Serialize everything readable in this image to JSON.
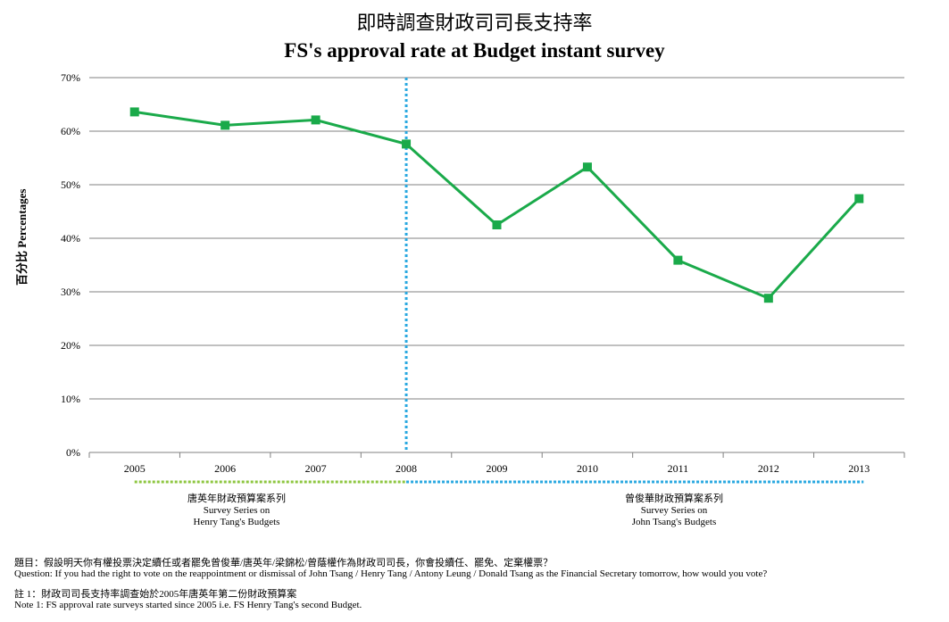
{
  "title_zh": "即時調查財政司司長支持率",
  "title_en": "FS's approval rate at Budget instant survey",
  "ylabel": "百分比 Percentages",
  "series_labels": {
    "henry": {
      "zh": "唐英年財政預算案系列",
      "en1": "Survey Series on",
      "en2": "Henry Tang's Budgets"
    },
    "john": {
      "zh": "曾俊華財政預算案系列",
      "en1": "Survey Series on",
      "en2": "John Tsang's Budgets"
    }
  },
  "notes": {
    "question_zh": "題目：假設明天你有權投票決定續任或者罷免曾俊華/唐英年/梁錦松/曾蔭權作為財政司司長，你會投續任、罷免、定棄權票？",
    "question_en": "Question: If you had the right  to vote on the reappointment or dismissal of John Tsang / Henry Tang / Antony Leung / Donald Tsang as  the Financial Secretary tomorrow, how would you vote?",
    "note_zh": "註 1：財政司司長支持率調查始於2005年唐英年第二份財政預算案",
    "note_en": "Note 1: FS approval rate surveys started since 2005 i.e. FS Henry Tang's second Budget."
  },
  "colors": {
    "line": "#1aaa4a",
    "divider": "#29a8e0",
    "henry_bar": "#8dc63f",
    "john_bar": "#29a8e0",
    "grid": "#808080"
  },
  "chart_data": {
    "type": "line",
    "title": "FS's approval rate at Budget instant survey",
    "ylabel": "百分比 Percentages",
    "xlabel": "",
    "categories": [
      "2005",
      "2006",
      "2007",
      "2008",
      "2009",
      "2010",
      "2011",
      "2012",
      "2013"
    ],
    "y_ticks": [
      "0%",
      "10%",
      "20%",
      "30%",
      "40%",
      "50%",
      "60%",
      "70%"
    ],
    "ylim": [
      0,
      70
    ],
    "grid": true,
    "series": [
      {
        "values": [
          63.6,
          61.1,
          62.1,
          57.6,
          42.5,
          53.3,
          35.9,
          28.8,
          47.4
        ]
      }
    ],
    "divider_at": "2008"
  }
}
